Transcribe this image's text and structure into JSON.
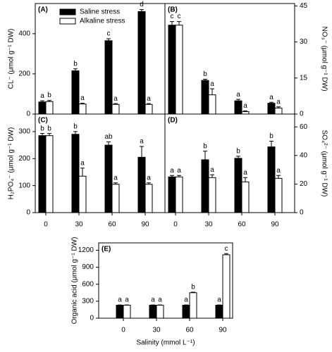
{
  "chart_data": [
    {
      "type": "bar",
      "title": "(A)",
      "ylabel": "CL⁻ (μmol g⁻¹ DW)",
      "axis_side": "left",
      "legend": "upper center",
      "ylim": [
        0,
        550
      ],
      "yticks": [
        0,
        200,
        400
      ],
      "series": [
        {
          "name": "Saline stress",
          "color": "#000000",
          "values": [
            60,
            215,
            365,
            510
          ],
          "errors": [
            6,
            10,
            10,
            10
          ],
          "letters": [
            "a",
            "b",
            "c",
            "d"
          ]
        },
        {
          "name": "Alkaline stress",
          "color": "#ffffff",
          "values": [
            62,
            50,
            48,
            48
          ],
          "errors": [
            6,
            4,
            4,
            4
          ],
          "letters": [
            "b",
            "a",
            "a",
            "a"
          ]
        }
      ]
    },
    {
      "type": "bar",
      "title": "(B)",
      "ylabel": "NO₃⁻ (μmol g⁻¹ DW)",
      "axis_side": "right",
      "ylim": [
        0,
        46
      ],
      "yticks": [
        0,
        15,
        30,
        45
      ],
      "series": [
        {
          "color": "#000000",
          "values": [
            37,
            14,
            5.5,
            4.5
          ],
          "errors": [
            1.5,
            0.5,
            0.6,
            0.4
          ],
          "letters": [
            "c",
            "b",
            "a",
            "a"
          ]
        },
        {
          "color": "#ffffff",
          "values": [
            37,
            8,
            1,
            2.5
          ],
          "errors": [
            1.5,
            2.5,
            0.3,
            0.5
          ],
          "letters": [
            "c",
            "a",
            "a",
            "a"
          ]
        }
      ]
    },
    {
      "type": "bar",
      "title": "(C)",
      "ylabel": "H₂PO₄⁻ (μmol g⁻¹ DW)",
      "axis_side": "left",
      "categories": [
        "0",
        "30",
        "60",
        "90"
      ],
      "ylim": [
        0,
        365
      ],
      "yticks": [
        0,
        100,
        200,
        300
      ],
      "series": [
        {
          "color": "#000000",
          "values": [
            285,
            290,
            250,
            205
          ],
          "errors": [
            8,
            10,
            12,
            40
          ],
          "letters": [
            "b",
            "b",
            "ab",
            "a"
          ]
        },
        {
          "color": "#ffffff",
          "values": [
            285,
            135,
            105,
            105
          ],
          "errors": [
            8,
            30,
            5,
            5
          ],
          "letters": [
            "b",
            "a",
            "a",
            "a"
          ]
        }
      ]
    },
    {
      "type": "bar",
      "title": "(D)",
      "ylabel": "SO₄²⁻ (μmol g⁻¹ DW)",
      "axis_side": "right",
      "categories": [
        "0",
        "30",
        "60",
        "90"
      ],
      "ylim": [
        0,
        69
      ],
      "yticks": [
        0,
        20,
        40,
        60
      ],
      "series": [
        {
          "color": "#000000",
          "values": [
            25,
            37,
            38,
            46
          ],
          "errors": [
            1,
            6,
            1.5,
            4
          ],
          "letters": [
            "a",
            "b",
            "b",
            "b"
          ]
        },
        {
          "color": "#ffffff",
          "values": [
            25,
            24.5,
            21.5,
            24
          ],
          "errors": [
            1,
            2,
            3,
            2
          ],
          "letters": [
            "a",
            "a",
            "a",
            "a"
          ]
        }
      ]
    },
    {
      "type": "bar",
      "title": "(E)",
      "ylabel": "Organic acid (μmol g⁻¹ DW)",
      "xlabel": "Salinity (mmol L⁻¹)",
      "axis_side": "left",
      "categories": [
        "0",
        "30",
        "60",
        "90"
      ],
      "ylim": [
        0,
        1330
      ],
      "yticks": [
        0,
        300,
        600,
        900,
        1200
      ],
      "series": [
        {
          "color": "#000000",
          "values": [
            230,
            230,
            230,
            230
          ],
          "errors": [
            5,
            5,
            5,
            5
          ],
          "letters": [
            "a",
            "a",
            "a",
            "a"
          ]
        },
        {
          "color": "#ffffff",
          "values": [
            230,
            230,
            450,
            1120
          ],
          "errors": [
            5,
            5,
            10,
            20
          ],
          "letters": [
            "a",
            "a",
            "b",
            "c"
          ]
        }
      ]
    }
  ]
}
